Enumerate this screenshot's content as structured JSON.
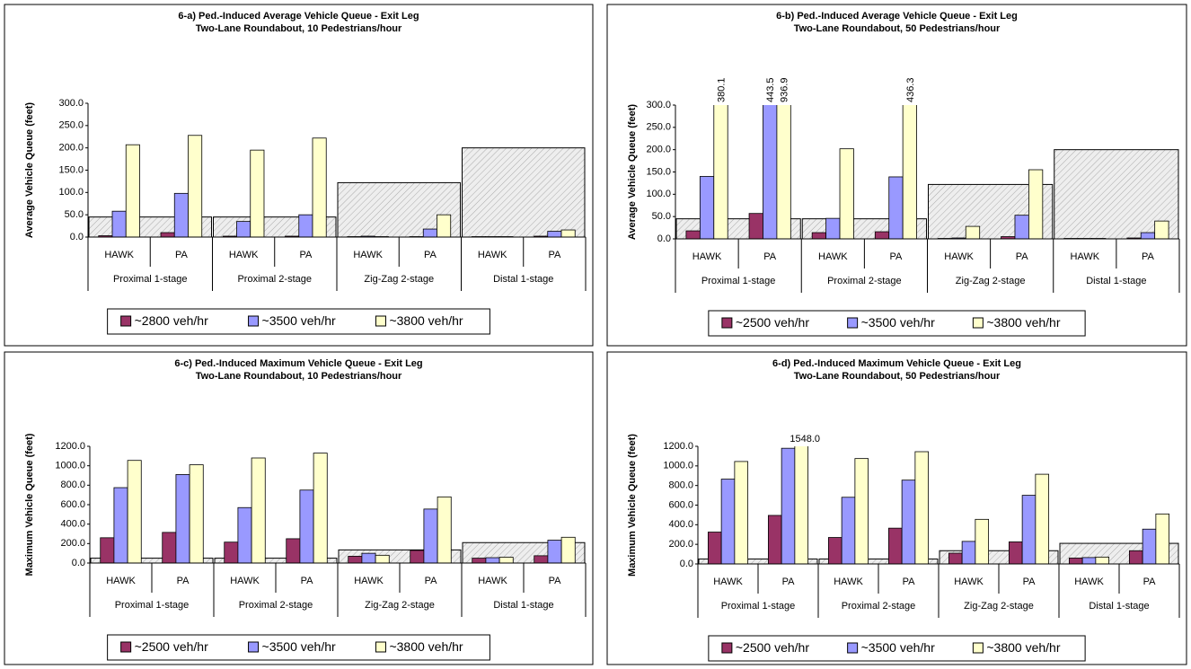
{
  "chart_data": [
    {
      "type": "bar",
      "title": "6-a) Ped.-Induced Average Vehicle Queue - Exit Leg",
      "subtitle": "Two-Lane Roundabout, 10 Pedestrians/hour",
      "ylabel": "Average Vehicle Queue (feet)",
      "categories": [
        "HAWK",
        "PA",
        "HAWK",
        "PA",
        "HAWK",
        "PA",
        "HAWK",
        "PA"
      ],
      "groups": [
        "Proximal 1-stage",
        "Proximal 2-stage",
        "Zig-Zag 2-stage",
        "Distal 1-stage"
      ],
      "band_values": [
        45,
        45,
        122,
        200
      ],
      "series": [
        {
          "name": "~2800 veh/hr",
          "color": "#993366",
          "values": [
            3,
            10,
            2,
            2,
            1,
            1,
            1,
            2
          ]
        },
        {
          "name": "~3500 veh/hr",
          "color": "#9999ff",
          "values": [
            58,
            98,
            35,
            50,
            2,
            18,
            1,
            13
          ]
        },
        {
          "name": "~3800 veh/hr",
          "color": "#ffffcc",
          "values": [
            207,
            228,
            195,
            222,
            1,
            50,
            1,
            16
          ]
        }
      ],
      "ylim": [
        0,
        300
      ],
      "yticks": [
        {
          "value": 0,
          "label": "0.0"
        },
        {
          "value": 50,
          "label": "50.0"
        },
        {
          "value": 100,
          "label": "100.0"
        },
        {
          "value": 150,
          "label": "150.0"
        },
        {
          "value": 200,
          "label": "200.0"
        },
        {
          "value": 250,
          "label": "250.0"
        },
        {
          "value": 300,
          "label": "300.0"
        }
      ],
      "legend": "bottom"
    },
    {
      "type": "bar",
      "title": "6-b) Ped.-Induced Average Vehicle Queue - Exit Leg",
      "subtitle": "Two-Lane Roundabout, 50 Pedestrians/hour",
      "ylabel": "Average Vehicle Queue (feet)",
      "categories": [
        "HAWK",
        "PA",
        "HAWK",
        "PA",
        "HAWK",
        "PA",
        "HAWK",
        "PA"
      ],
      "groups": [
        "Proximal 1-stage",
        "Proximal 2-stage",
        "Zig-Zag 2-stage",
        "Distal 1-stage"
      ],
      "band_values": [
        45,
        45,
        122,
        200
      ],
      "series": [
        {
          "name": "~2500 veh/hr",
          "color": "#993366",
          "values": [
            18,
            57,
            14,
            16,
            1,
            5,
            1,
            2
          ]
        },
        {
          "name": "~3500 veh/hr",
          "color": "#9999ff",
          "values": [
            140,
            443.5,
            46,
            139,
            2,
            53,
            1,
            14
          ],
          "value_labels": [
            null,
            "443.5",
            null,
            null,
            null,
            null,
            null,
            null
          ]
        },
        {
          "name": "~3800 veh/hr",
          "color": "#ffffcc",
          "values": [
            380.1,
            936.9,
            202,
            436.3,
            28,
            155,
            1,
            40
          ],
          "value_labels": [
            "380.1",
            "936.9",
            null,
            "436.3",
            null,
            null,
            null,
            null
          ]
        }
      ],
      "ylim": [
        0,
        300
      ],
      "yticks": [
        {
          "value": 0,
          "label": "0.0"
        },
        {
          "value": 50,
          "label": "50.0"
        },
        {
          "value": 100,
          "label": "100.0"
        },
        {
          "value": 150,
          "label": "150.0"
        },
        {
          "value": 200,
          "label": "200.0"
        },
        {
          "value": 250,
          "label": "250.0"
        },
        {
          "value": 300,
          "label": "300.0"
        }
      ],
      "legend": "bottom"
    },
    {
      "type": "bar",
      "title": "6-c) Ped.-Induced Maximum Vehicle Queue - Exit Leg",
      "subtitle": "Two-Lane Roundabout, 10 Pedestrians/hour",
      "ylabel": "Maximum Vehicle Queue (feet)",
      "categories": [
        "HAWK",
        "PA",
        "HAWK",
        "PA",
        "HAWK",
        "PA",
        "HAWK",
        "PA"
      ],
      "groups": [
        "Proximal 1-stage",
        "Proximal 2-stage",
        "Zig-Zag 2-stage",
        "Distal 1-stage"
      ],
      "band_values": [
        50,
        50,
        135,
        210
      ],
      "series": [
        {
          "name": "~2500 veh/hr",
          "color": "#993366",
          "values": [
            260,
            315,
            215,
            250,
            70,
            130,
            50,
            75
          ]
        },
        {
          "name": "~3500 veh/hr",
          "color": "#9999ff",
          "values": [
            775,
            910,
            570,
            750,
            100,
            555,
            55,
            235
          ]
        },
        {
          "name": "~3800 veh/hr",
          "color": "#ffffcc",
          "values": [
            1055,
            1010,
            1080,
            1130,
            80,
            680,
            60,
            265
          ]
        }
      ],
      "ylim": [
        0,
        1200
      ],
      "yticks": [
        {
          "value": 0,
          "label": "0.0"
        },
        {
          "value": 200,
          "label": "200.0"
        },
        {
          "value": 400,
          "label": "400.0"
        },
        {
          "value": 600,
          "label": "600.0"
        },
        {
          "value": 800,
          "label": "800.0"
        },
        {
          "value": 1000,
          "label": "1000.0"
        },
        {
          "value": 1200,
          "label": "1200.0"
        }
      ],
      "legend": "bottom"
    },
    {
      "type": "bar",
      "title": "6-d) Ped.-Induced Maximum Vehicle Queue - Exit Leg",
      "subtitle": "Two-Lane Roundabout, 50 Pedestrians/hour",
      "ylabel": "Maximum Vehicle Queue (feet)",
      "categories": [
        "HAWK",
        "PA",
        "HAWK",
        "PA",
        "HAWK",
        "PA",
        "HAWK",
        "PA"
      ],
      "groups": [
        "Proximal 1-stage",
        "Proximal 2-stage",
        "Zig-Zag 2-stage",
        "Distal 1-stage"
      ],
      "band_values": [
        50,
        50,
        135,
        210
      ],
      "series": [
        {
          "name": "~2500 veh/hr",
          "color": "#993366",
          "values": [
            325,
            495,
            270,
            365,
            110,
            225,
            60,
            135
          ]
        },
        {
          "name": "~3500 veh/hr",
          "color": "#9999ff",
          "values": [
            865,
            1180,
            680,
            855,
            230,
            700,
            65,
            355
          ]
        },
        {
          "name": "~3800 veh/hr",
          "color": "#ffffcc",
          "values": [
            1045,
            1548,
            1075,
            1145,
            455,
            915,
            70,
            510
          ],
          "value_labels": [
            null,
            "1548.0",
            null,
            null,
            null,
            null,
            null,
            null
          ]
        }
      ],
      "ylim": [
        0,
        1200
      ],
      "yticks": [
        {
          "value": 0,
          "label": "0.0"
        },
        {
          "value": 200,
          "label": "200.0"
        },
        {
          "value": 400,
          "label": "400.0"
        },
        {
          "value": 600,
          "label": "600.0"
        },
        {
          "value": 800,
          "label": "800.0"
        },
        {
          "value": 1000,
          "label": "1000.0"
        },
        {
          "value": 1200,
          "label": "1200.0"
        }
      ],
      "legend": "bottom"
    }
  ]
}
